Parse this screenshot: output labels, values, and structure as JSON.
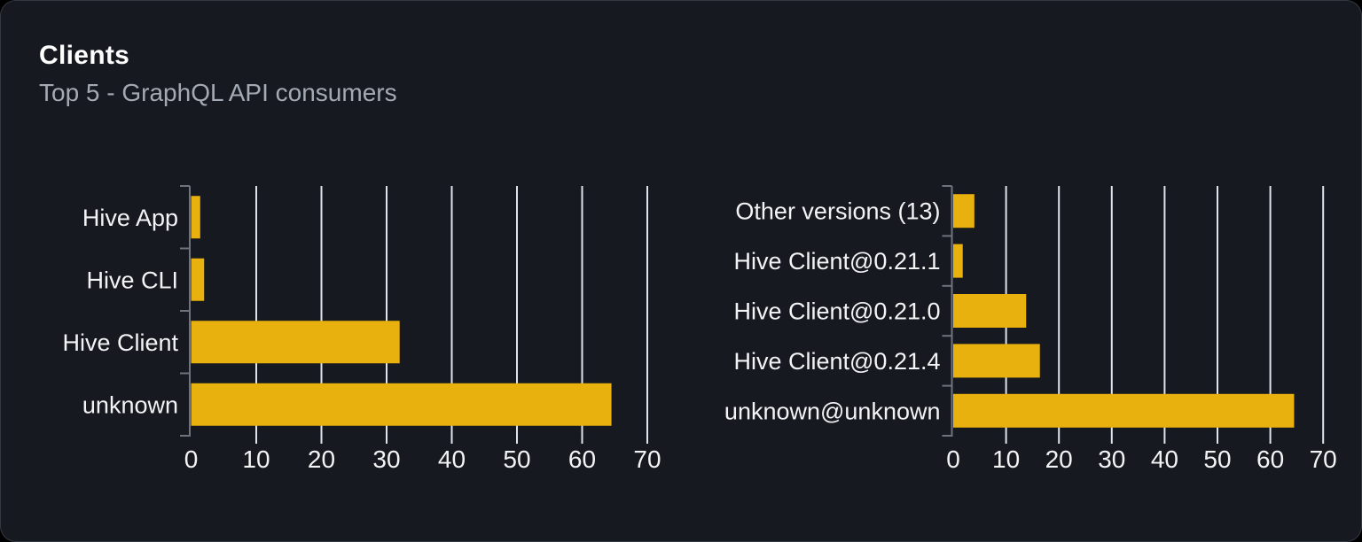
{
  "header": {
    "title": "Clients",
    "subtitle": "Top 5 - GraphQL API consumers"
  },
  "colors": {
    "bar": "#e8b10d",
    "card_background": "#16191f",
    "card_border": "#343842",
    "gridline": "#dfe3ec",
    "axis": "#6e737c",
    "label_text": "#f2f3f5",
    "subtitle_text": "#a4aab4"
  },
  "chart_data": [
    {
      "type": "bar",
      "orientation": "horizontal",
      "categories": [
        "Hive App",
        "Hive CLI",
        "Hive Client",
        "unknown"
      ],
      "values": [
        1.4,
        2,
        32,
        64.5
      ],
      "xticks": [
        0,
        10,
        20,
        30,
        40,
        50,
        60,
        70
      ],
      "xlim": [
        0,
        70
      ],
      "grid": true,
      "legend": false,
      "bar_color": "#e8b10d"
    },
    {
      "type": "bar",
      "orientation": "horizontal",
      "categories": [
        "Other versions (13)",
        "Hive Client@0.21.1",
        "Hive Client@0.21.0",
        "Hive Client@0.21.4",
        "unknown@unknown"
      ],
      "values": [
        4,
        1.8,
        13.8,
        16.4,
        64.5
      ],
      "xticks": [
        0,
        10,
        20,
        30,
        40,
        50,
        60,
        70
      ],
      "xlim": [
        0,
        70
      ],
      "grid": true,
      "legend": false,
      "bar_color": "#e8b10d"
    }
  ]
}
